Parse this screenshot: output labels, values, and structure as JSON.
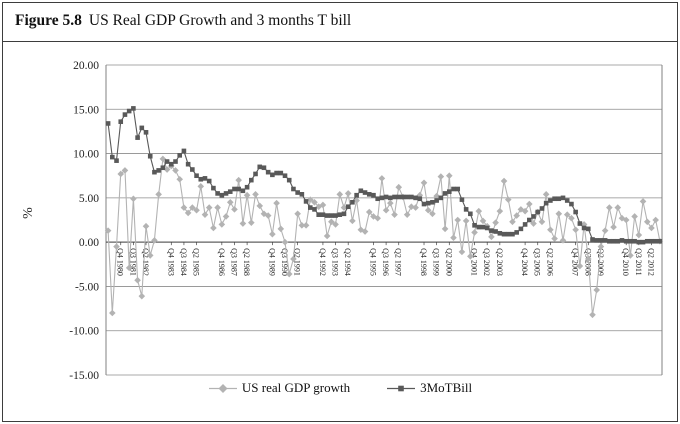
{
  "figure": {
    "label": "Figure 5.8",
    "title": "US Real GDP Growth and 3 months T bill"
  },
  "chart_data": {
    "type": "line",
    "title": "US Real GDP Growth and 3 months T bill",
    "xlabel": "",
    "ylabel": "%",
    "ylim": [
      -15,
      20
    ],
    "y_tick_labels": [
      "20.00",
      "15.00",
      "10.00",
      "5.00",
      "0.00",
      "-5.00",
      "-10.00",
      "-15.00"
    ],
    "grid": "horizontal",
    "legend_position": "bottom",
    "x_frequency": "quarterly",
    "x_start": "Q1 1980",
    "x_end": "Q4 2012",
    "x_tick_labels": [
      {
        "label": "Q4 1980",
        "index": 3
      },
      {
        "label": "Q3 1981",
        "index": 6
      },
      {
        "label": "Q2 1982",
        "index": 9
      },
      {
        "label": "Q4 1983",
        "index": 15
      },
      {
        "label": "Q3 1984",
        "index": 18
      },
      {
        "label": "Q2 1985",
        "index": 21
      },
      {
        "label": "Q4 1986",
        "index": 27
      },
      {
        "label": "Q3 1987",
        "index": 30
      },
      {
        "label": "Q2 1988",
        "index": 33
      },
      {
        "label": "Q4 1989",
        "index": 39
      },
      {
        "label": "Q3 1990",
        "index": 42
      },
      {
        "label": "Q2 1991",
        "index": 45
      },
      {
        "label": "Q4 1992",
        "index": 51
      },
      {
        "label": "Q3 1993",
        "index": 54
      },
      {
        "label": "Q2 1994",
        "index": 57
      },
      {
        "label": "Q4 1995",
        "index": 63
      },
      {
        "label": "Q3 1996",
        "index": 66
      },
      {
        "label": "Q2 1997",
        "index": 69
      },
      {
        "label": "Q4 1998",
        "index": 75
      },
      {
        "label": "Q3 1999",
        "index": 78
      },
      {
        "label": "Q2 2000",
        "index": 81
      },
      {
        "label": "Q4 2001",
        "index": 87
      },
      {
        "label": "Q3 2002",
        "index": 90
      },
      {
        "label": "Q2 2003",
        "index": 93
      },
      {
        "label": "Q4 2004",
        "index": 99
      },
      {
        "label": "Q3 2005",
        "index": 102
      },
      {
        "label": "Q2 2006",
        "index": 105
      },
      {
        "label": "Q4 2007",
        "index": 111
      },
      {
        "label": "Q3 2008",
        "index": 114
      },
      {
        "label": "Q2 2009",
        "index": 117
      },
      {
        "label": "Q4 2010",
        "index": 123
      },
      {
        "label": "Q3 2011",
        "index": 126
      },
      {
        "label": "Q2 2012",
        "index": 129
      }
    ],
    "series": [
      {
        "id": "gdp-growth",
        "name": "US real GDP growth",
        "marker": "diamond",
        "color": "#b3b3b3",
        "values": [
          1.3,
          -8.0,
          -0.5,
          7.7,
          8.1,
          -2.9,
          4.9,
          -4.3,
          -6.1,
          1.8,
          -1.5,
          0.2,
          5.4,
          9.4,
          8.2,
          8.6,
          8.1,
          7.1,
          3.9,
          3.3,
          3.9,
          3.6,
          6.3,
          3.1,
          3.9,
          1.6,
          3.9,
          2.0,
          2.9,
          4.5,
          3.7,
          7.0,
          2.1,
          5.3,
          2.2,
          5.4,
          4.1,
          3.2,
          3.0,
          0.9,
          4.4,
          1.5,
          0.0,
          -3.6,
          -1.9,
          3.2,
          1.9,
          1.9,
          4.8,
          4.5,
          4.0,
          4.2,
          0.7,
          2.3,
          2.0,
          5.4,
          3.9,
          5.5,
          2.4,
          4.7,
          1.4,
          1.2,
          3.4,
          2.9,
          2.7,
          7.2,
          3.6,
          4.4,
          3.1,
          6.2,
          5.1,
          3.1,
          4.0,
          3.9,
          5.3,
          6.7,
          3.6,
          3.2,
          5.2,
          7.4,
          1.5,
          7.5,
          0.5,
          2.5,
          -1.1,
          2.4,
          -1.6,
          1.1,
          3.5,
          2.4,
          1.8,
          0.6,
          2.2,
          3.5,
          6.9,
          4.8,
          2.3,
          3.0,
          3.7,
          3.5,
          4.3,
          2.1,
          3.4,
          2.3,
          5.4,
          1.4,
          0.4,
          3.2,
          0.2,
          3.1,
          2.7,
          1.4,
          -2.7,
          2.0,
          -1.9,
          -8.2,
          -5.4,
          -0.5,
          1.3,
          3.9,
          1.7,
          3.9,
          2.7,
          2.5,
          -1.5,
          2.9,
          0.8,
          4.6,
          2.3,
          1.6,
          2.5,
          0.1
        ]
      },
      {
        "id": "tbill",
        "name": "3MoTBill",
        "marker": "square",
        "color": "#595959",
        "values": [
          13.4,
          9.6,
          9.2,
          13.6,
          14.4,
          14.8,
          15.1,
          11.8,
          12.9,
          12.4,
          9.7,
          7.9,
          8.1,
          8.4,
          9.1,
          8.8,
          9.1,
          9.8,
          10.3,
          8.8,
          8.2,
          7.5,
          7.1,
          7.2,
          6.9,
          6.1,
          5.5,
          5.3,
          5.5,
          5.7,
          6.0,
          6.0,
          5.8,
          6.2,
          7.0,
          7.7,
          8.5,
          8.4,
          7.9,
          7.6,
          7.8,
          7.8,
          7.5,
          7.0,
          6.0,
          5.6,
          5.4,
          4.6,
          3.9,
          3.7,
          3.1,
          3.1,
          3.0,
          3.0,
          3.0,
          3.1,
          3.2,
          4.0,
          4.5,
          5.3,
          5.8,
          5.6,
          5.4,
          5.3,
          4.9,
          5.0,
          5.1,
          5.0,
          5.1,
          5.1,
          5.1,
          5.1,
          5.1,
          5.0,
          4.9,
          4.3,
          4.4,
          4.5,
          4.7,
          5.0,
          5.5,
          5.7,
          6.0,
          6.0,
          4.8,
          3.7,
          3.2,
          1.9,
          1.7,
          1.7,
          1.6,
          1.3,
          1.2,
          1.0,
          0.9,
          0.9,
          0.9,
          1.1,
          1.5,
          2.0,
          2.5,
          2.9,
          3.4,
          3.8,
          4.4,
          4.7,
          4.9,
          4.9,
          5.0,
          4.7,
          4.3,
          3.4,
          2.1,
          1.6,
          1.5,
          0.3,
          0.2,
          0.2,
          0.2,
          0.1,
          0.1,
          0.1,
          0.2,
          0.1,
          0.1,
          0.1,
          0.0,
          0.0,
          0.1,
          0.1,
          0.1,
          0.1
        ]
      }
    ]
  }
}
